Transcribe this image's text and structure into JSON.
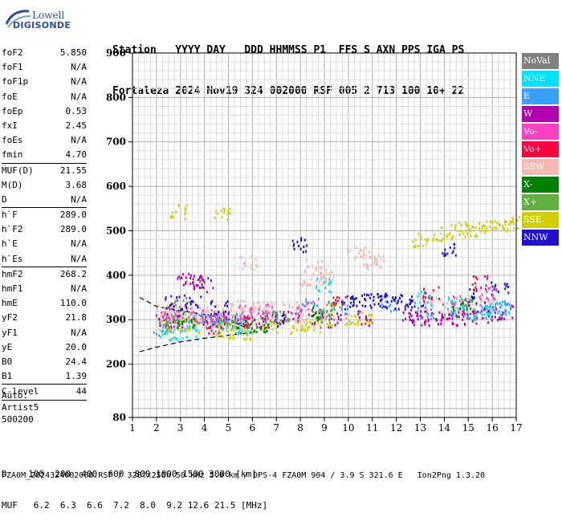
{
  "logo": {
    "line1": "Lowell",
    "line2": "DIGISONDE"
  },
  "header": {
    "line1": "Station   YYYY DAY   DDD HHMMSS P1  FFS S AXN PPS IGA PS",
    "line2": "Fortaleza 2024 Nov19 324 002000 RSF 005 2 713 100 10+ 22"
  },
  "params": {
    "group1": [
      {
        "name": "foF2",
        "value": "5.850"
      },
      {
        "name": "foF1",
        "value": "N/A"
      },
      {
        "name": "foF1p",
        "value": "N/A"
      },
      {
        "name": "foE",
        "value": "N/A"
      },
      {
        "name": "foEp",
        "value": "0.53"
      },
      {
        "name": "fxI",
        "value": "2.45"
      },
      {
        "name": "foEs",
        "value": "N/A"
      },
      {
        "name": "fmin",
        "value": "4.70"
      }
    ],
    "group2": [
      {
        "name": "MUF(D)",
        "value": "21.55"
      },
      {
        "name": "M(D)",
        "value": "3.68"
      },
      {
        "name": "D",
        "value": "N/A"
      }
    ],
    "group3": [
      {
        "name": "h`F",
        "value": "289.0"
      },
      {
        "name": "h`F2",
        "value": "289.0"
      },
      {
        "name": "h`E",
        "value": "N/A"
      },
      {
        "name": "h`Es",
        "value": "N/A"
      }
    ],
    "group4": [
      {
        "name": "hmF2",
        "value": "268.2"
      },
      {
        "name": "hmF1",
        "value": "N/A"
      },
      {
        "name": "hmE",
        "value": "110.0"
      },
      {
        "name": "yF2",
        "value": "21.8"
      },
      {
        "name": "yF1",
        "value": "N/A"
      },
      {
        "name": "yE",
        "value": "20.0"
      },
      {
        "name": "B0",
        "value": "24.4"
      },
      {
        "name": "B1",
        "value": "1.39"
      }
    ],
    "clevel": {
      "name": "C-level",
      "value": "44"
    }
  },
  "auto": {
    "line1": "Auto:",
    "line2": "Artist5",
    "line3": "500200"
  },
  "legend": [
    {
      "label": "NoVal",
      "color": "#808080"
    },
    {
      "label": "NNE",
      "color": "#00e0ff"
    },
    {
      "label": "E",
      "color": "#3aa0ff"
    },
    {
      "label": "W",
      "color": "#b000b0"
    },
    {
      "label": "Vo-",
      "color": "#ff40c0"
    },
    {
      "label": "Vo+",
      "color": "#ff0040"
    },
    {
      "label": "SSW",
      "color": "#f4b8b0"
    },
    {
      "label": "X-",
      "color": "#008000"
    },
    {
      "label": "X+",
      "color": "#60b040"
    },
    {
      "label": "SSE",
      "color": "#d0d000"
    },
    {
      "label": "NNW",
      "color": "#2010d0"
    }
  ],
  "muf": {
    "line1": "D    100  200  400  600  800 1000 1500 3000 [km]",
    "line2": "MUF   6.2  6.3  6.6  7.2  8.0  9.2 12.6 21.5 [MHz]"
  },
  "footer": "FZA0M_2024324002000.RSF / 320fx256h 50 kHz 5.0 km / DPS-4 FZA0M 904 / 3.9 S 321.6 E   Ion2Png 1.3.20",
  "chart_data": {
    "type": "scatter",
    "title": "",
    "xlabel": "",
    "ylabel": "",
    "xlim": [
      1,
      17
    ],
    "ylim": [
      80,
      900
    ],
    "x_ticks": [
      1,
      2,
      3,
      4,
      5,
      6,
      7,
      8,
      9,
      10,
      11,
      12,
      13,
      14,
      15,
      16,
      17
    ],
    "y_ticks": [
      80,
      200,
      300,
      400,
      500,
      600,
      700,
      800,
      900
    ],
    "grid": true,
    "legend_position": "right",
    "series": [
      {
        "name": "SSW",
        "color": "#f4b8b0",
        "points": [
          [
            2.3,
            320
          ],
          [
            2.8,
            325
          ],
          [
            3.3,
            322
          ],
          [
            3.8,
            318
          ],
          [
            4.3,
            320
          ],
          [
            4.8,
            325
          ],
          [
            5.3,
            322
          ],
          [
            5.7,
            330
          ],
          [
            5.8,
            430
          ],
          [
            6.2,
            330
          ],
          [
            6.8,
            325
          ],
          [
            7.6,
            325
          ],
          [
            8.1,
            310
          ],
          [
            8.3,
            380
          ],
          [
            8.5,
            420
          ],
          [
            8.7,
            400
          ],
          [
            9.0,
            395
          ],
          [
            10.3,
            450
          ],
          [
            10.8,
            440
          ],
          [
            11.1,
            430
          ],
          [
            13.3,
            335
          ],
          [
            14.0,
            332
          ],
          [
            14.5,
            328
          ],
          [
            15.2,
            330
          ],
          [
            15.8,
            335
          ]
        ]
      },
      {
        "name": "W",
        "color": "#b000b0",
        "points": [
          [
            2.2,
            300
          ],
          [
            2.6,
            295
          ],
          [
            3.0,
            300
          ],
          [
            3.2,
            390
          ],
          [
            3.6,
            385
          ],
          [
            4.0,
            380
          ],
          [
            4.2,
            305
          ],
          [
            4.6,
            300
          ],
          [
            5.1,
            305
          ],
          [
            5.6,
            300
          ],
          [
            6.6,
            300
          ],
          [
            7.6,
            305
          ],
          [
            8.6,
            300
          ],
          [
            9.4,
            300
          ],
          [
            10.6,
            305
          ],
          [
            12.5,
            310
          ],
          [
            13.0,
            305
          ],
          [
            13.5,
            305
          ],
          [
            14.0,
            305
          ],
          [
            14.5,
            305
          ],
          [
            15.0,
            308
          ],
          [
            15.5,
            310
          ],
          [
            16.0,
            315
          ],
          [
            16.5,
            318
          ]
        ]
      },
      {
        "name": "E",
        "color": "#3aa0ff",
        "points": [
          [
            2.2,
            280
          ],
          [
            2.8,
            290
          ],
          [
            3.5,
            300
          ],
          [
            4.2,
            305
          ],
          [
            4.8,
            290
          ],
          [
            5.4,
            300
          ],
          [
            8.4,
            335
          ],
          [
            9.6,
            330
          ],
          [
            11.7,
            335
          ],
          [
            13.2,
            320
          ],
          [
            14.2,
            325
          ],
          [
            15.1,
            318
          ],
          [
            15.8,
            322
          ],
          [
            16.5,
            330
          ]
        ]
      },
      {
        "name": "NNE",
        "color": "#00e0ff",
        "points": [
          [
            2.5,
            270
          ],
          [
            3.3,
            275
          ],
          [
            4.6,
            290
          ],
          [
            5.5,
            280
          ],
          [
            8.9,
            380
          ],
          [
            13.1,
            350
          ],
          [
            14.5,
            340
          ],
          [
            15.6,
            320
          ],
          [
            16.2,
            330
          ]
        ]
      },
      {
        "name": "NNW",
        "color": "#2010d0",
        "points": [
          [
            2.7,
            340
          ],
          [
            3.5,
            345
          ],
          [
            4.6,
            330
          ],
          [
            7.0,
            300
          ],
          [
            8.0,
            470
          ],
          [
            10.0,
            340
          ],
          [
            10.6,
            345
          ],
          [
            11.2,
            345
          ],
          [
            11.6,
            345
          ],
          [
            12.2,
            342
          ],
          [
            12.8,
            345
          ],
          [
            14.2,
            460
          ],
          [
            15.3,
            355
          ],
          [
            16.3,
            370
          ]
        ]
      },
      {
        "name": "SSE",
        "color": "#d0d000",
        "points": [
          [
            2.4,
            285
          ],
          [
            3.0,
            290
          ],
          [
            3.7,
            288
          ],
          [
            4.5,
            280
          ],
          [
            5.2,
            275
          ],
          [
            5.8,
            272
          ],
          [
            6.7,
            290
          ],
          [
            7.8,
            285
          ],
          [
            8.5,
            290
          ],
          [
            9.0,
            305
          ],
          [
            10.2,
            300
          ],
          [
            10.6,
            305
          ],
          [
            13.8,
            495
          ],
          [
            14.4,
            500
          ],
          [
            14.9,
            505
          ],
          [
            15.4,
            505
          ],
          [
            15.9,
            510
          ],
          [
            16.4,
            515
          ],
          [
            16.8,
            520
          ],
          [
            2.9,
            545
          ],
          [
            4.7,
            540
          ],
          [
            13.0,
            480
          ]
        ]
      },
      {
        "name": "Vo-",
        "color": "#ff40c0",
        "points": [
          [
            2.4,
            310
          ],
          [
            3.6,
            312
          ],
          [
            4.5,
            308
          ],
          [
            5.6,
            318
          ],
          [
            6.5,
            320
          ],
          [
            8.2,
            330
          ],
          [
            14.6,
            345
          ],
          [
            15.8,
            360
          ]
        ]
      },
      {
        "name": "Vo+",
        "color": "#ff0040",
        "points": [
          [
            4.4,
            285
          ],
          [
            5.9,
            295
          ],
          [
            9.6,
            345
          ],
          [
            13.4,
            360
          ],
          [
            15.5,
            385
          ]
        ]
      },
      {
        "name": "X-",
        "color": "#008000",
        "points": [
          [
            3.2,
            300
          ],
          [
            5.7,
            285
          ],
          [
            6.3,
            290
          ],
          [
            8.6,
            315
          ],
          [
            14.7,
            325
          ]
        ]
      },
      {
        "name": "X+",
        "color": "#60b040",
        "points": [
          [
            2.6,
            300
          ],
          [
            4.9,
            292
          ],
          [
            7.2,
            305
          ],
          [
            9.2,
            330
          ],
          [
            15.0,
            340
          ]
        ]
      },
      {
        "name": "NoVal",
        "color": "#808080",
        "points": [
          [
            3.0,
            335
          ],
          [
            6.8,
            310
          ],
          [
            9.1,
            310
          ]
        ]
      }
    ],
    "fitted_curves": [
      {
        "name": "O-trace",
        "points": [
          [
            1.3,
            228
          ],
          [
            2.0,
            238
          ],
          [
            3.0,
            250
          ],
          [
            4.0,
            258
          ],
          [
            5.0,
            265
          ],
          [
            5.8,
            270
          ]
        ]
      },
      {
        "name": "X-trace",
        "points": [
          [
            1.3,
            350
          ],
          [
            2.0,
            330
          ],
          [
            3.0,
            320
          ],
          [
            4.0,
            312
          ],
          [
            5.0,
            300
          ],
          [
            5.8,
            280
          ]
        ]
      }
    ]
  }
}
